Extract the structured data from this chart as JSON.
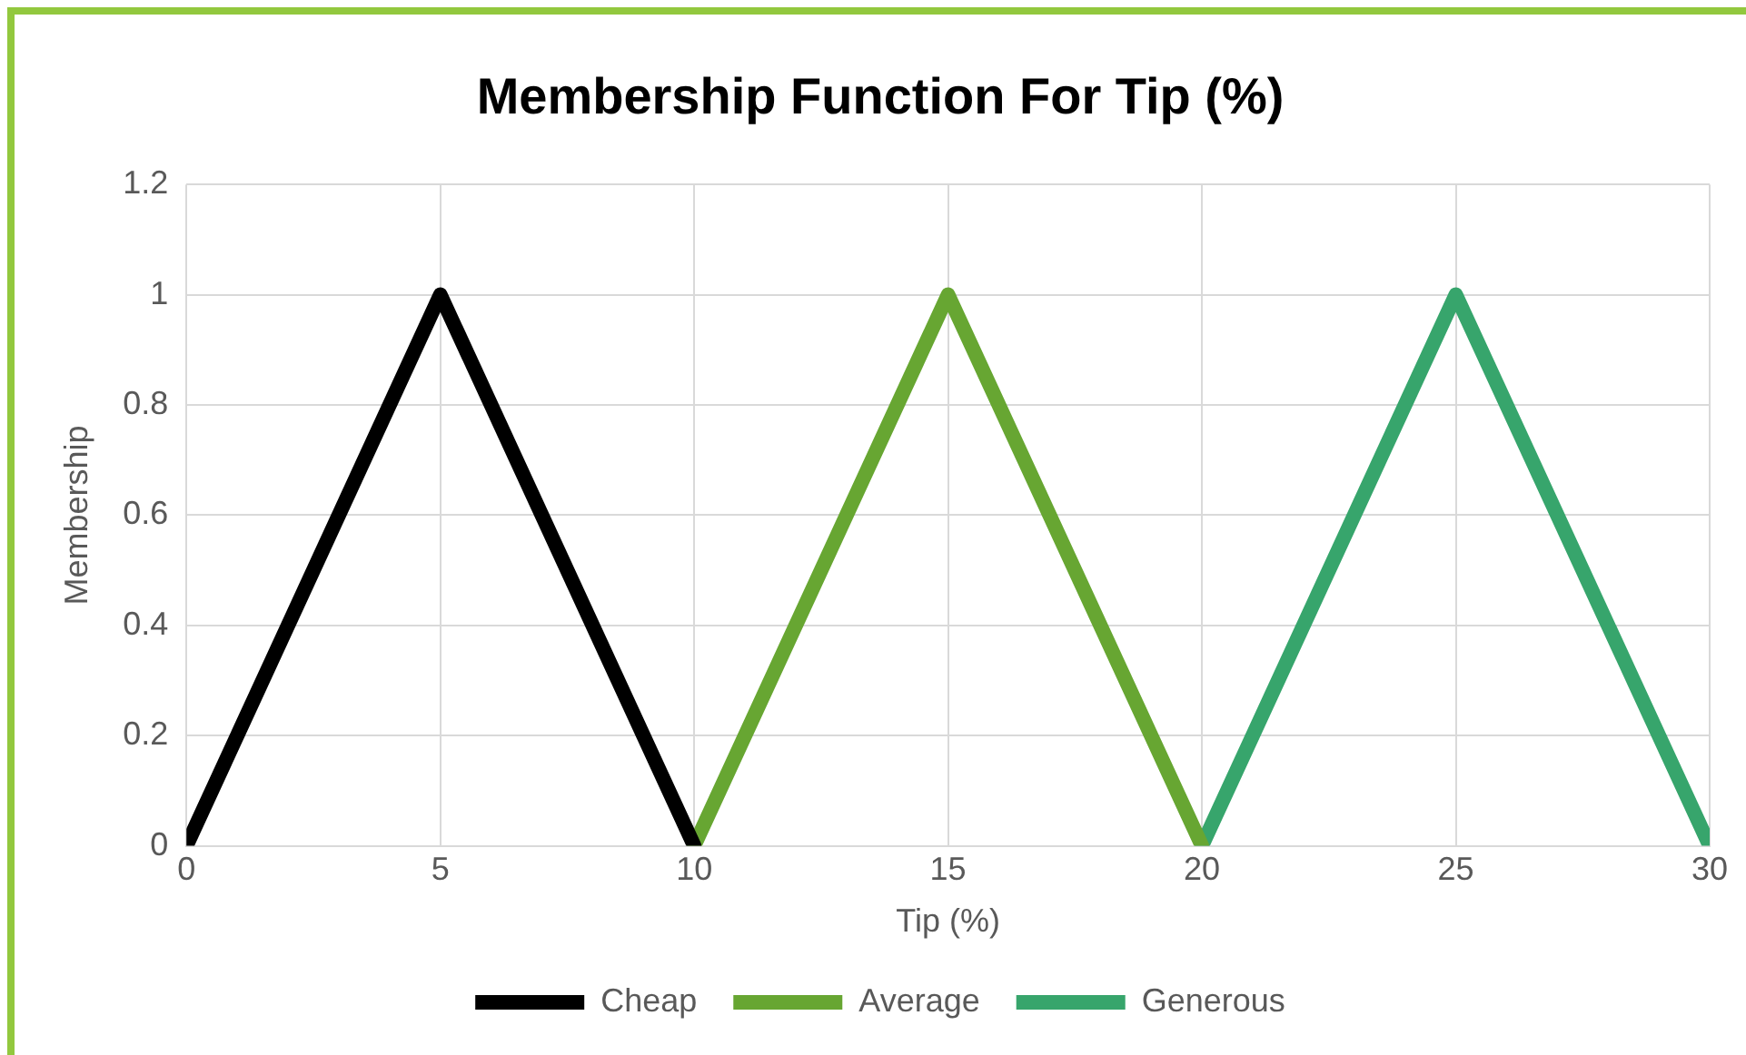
{
  "chart_data": {
    "type": "line",
    "title": "Membership Function For Tip (%)",
    "xlabel": "Tip (%)",
    "ylabel": "Membership",
    "series": [
      {
        "name": "Cheap",
        "color": "#000000",
        "x": [
          0,
          5,
          10
        ],
        "values": [
          0,
          1,
          0
        ]
      },
      {
        "name": "Average",
        "color": "#67a632",
        "x": [
          10,
          15,
          20
        ],
        "values": [
          0,
          1,
          0
        ]
      },
      {
        "name": "Generous",
        "color": "#37a56c",
        "x": [
          20,
          25,
          30
        ],
        "values": [
          0,
          1,
          0
        ]
      }
    ],
    "xlim": [
      0,
      30
    ],
    "xticks": [
      0,
      5,
      10,
      15,
      20,
      25,
      30
    ],
    "ylim": [
      0,
      1.2
    ],
    "yticks": [
      0,
      0.2,
      0.4,
      0.6,
      0.8,
      1,
      1.2
    ],
    "grid": true,
    "legend": "bottom",
    "marker": "none",
    "line_style": "solid"
  }
}
